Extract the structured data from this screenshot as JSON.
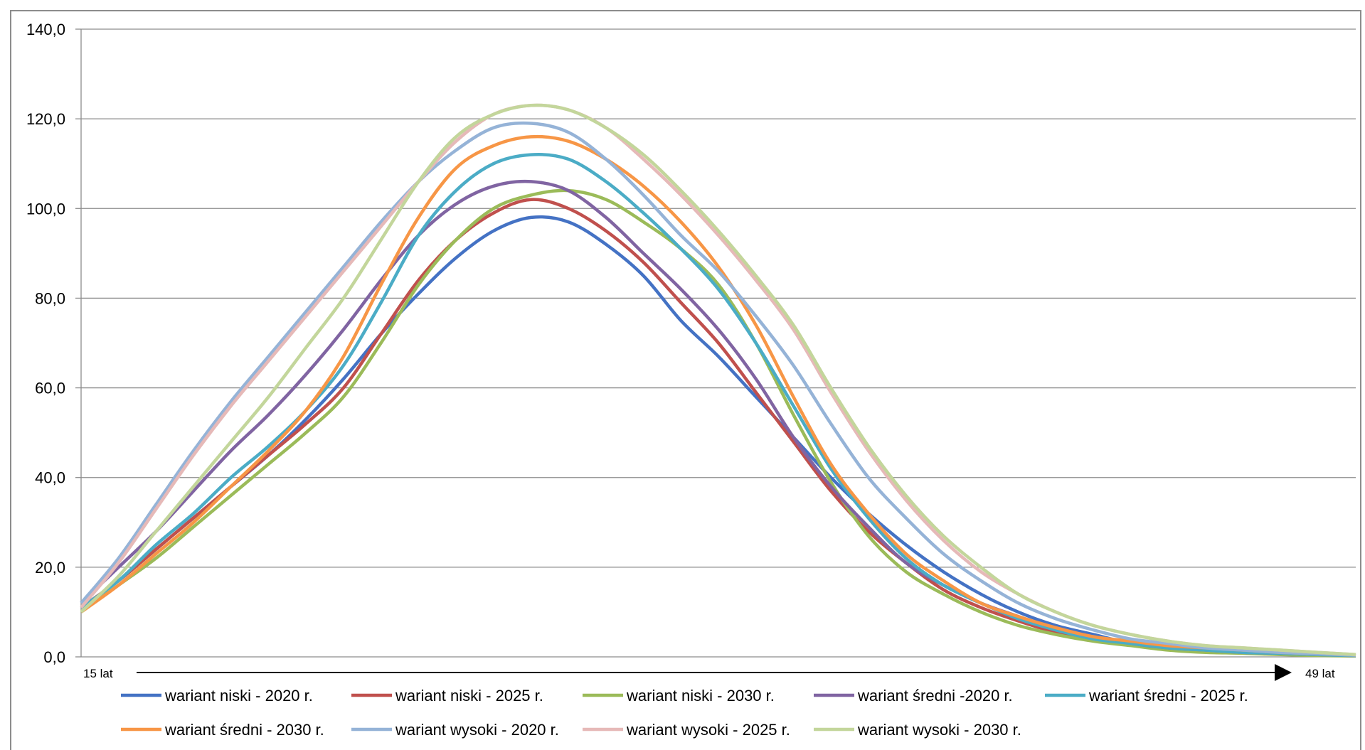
{
  "chart_data": {
    "type": "line",
    "title": "",
    "xlabel": "",
    "ylabel": "",
    "ylim": [
      0,
      140
    ],
    "yticks": [
      "0,0",
      "20,0",
      "40,0",
      "60,0",
      "80,0",
      "100,0",
      "120,0",
      "140,0"
    ],
    "x_start_label": "15 lat",
    "x_end_label": "49 lat",
    "grid": true,
    "legend_position": "bottom",
    "x": [
      15,
      16,
      17,
      18,
      19,
      20,
      21,
      22,
      23,
      24,
      25,
      26,
      27,
      28,
      29,
      30,
      31,
      32,
      33,
      34,
      35,
      36,
      37,
      38,
      39,
      40,
      41,
      42,
      43,
      44,
      45,
      46,
      47,
      48,
      49
    ],
    "series": [
      {
        "name": "wariant niski - 2020 r.",
        "color": "#4472C4",
        "values": [
          11,
          17,
          24,
          31,
          38,
          45,
          53,
          62,
          72,
          81,
          89,
          95,
          98,
          97,
          92,
          85,
          75,
          67,
          58,
          49,
          40,
          32,
          25,
          19,
          14,
          10,
          7,
          5,
          3,
          2,
          1.5,
          1,
          0.8,
          0.5,
          0.3
        ]
      },
      {
        "name": "wariant niski - 2025 r.",
        "color": "#C0504D",
        "values": [
          11,
          17,
          24,
          31,
          38,
          45,
          52,
          60,
          72,
          84,
          93,
          99,
          102,
          100,
          95,
          88,
          79,
          70,
          59,
          48,
          37,
          28,
          21,
          15,
          11,
          8,
          5.5,
          4,
          3,
          2,
          1.4,
          1,
          0.7,
          0.4,
          0.2
        ]
      },
      {
        "name": "wariant niski - 2030 r.",
        "color": "#9BBB59",
        "values": [
          10,
          16,
          22,
          29,
          36,
          43,
          50,
          58,
          70,
          83,
          93,
          100,
          103,
          104,
          102,
          97,
          91,
          83,
          70,
          54,
          39,
          27,
          19,
          14,
          10,
          7,
          5,
          3.5,
          2.5,
          1.5,
          1,
          0.8,
          0.5,
          0.3,
          0.2
        ]
      },
      {
        "name": "wariant średni -2020 r.",
        "color": "#8064A2",
        "values": [
          12,
          20,
          28,
          37,
          46,
          54,
          63,
          73,
          84,
          94,
          101,
          105,
          106,
          104,
          98,
          90,
          82,
          73,
          62,
          49,
          38,
          29,
          21,
          16,
          12,
          9,
          6,
          4.5,
          3,
          2,
          1.5,
          1,
          0.8,
          0.5,
          0.3
        ]
      },
      {
        "name": "wariant średni - 2025 r.",
        "color": "#4BACC6",
        "values": [
          11,
          17,
          25,
          32,
          40,
          47,
          55,
          65,
          79,
          94,
          104,
          110,
          112,
          111,
          106,
          99,
          91,
          82,
          70,
          56,
          42,
          31,
          22,
          16,
          12,
          8.5,
          6,
          4,
          3,
          2,
          1.5,
          1,
          0.8,
          0.5,
          0.3
        ]
      },
      {
        "name": "wariant średni - 2030 r.",
        "color": "#F79646",
        "values": [
          10,
          16,
          23,
          30,
          38,
          46,
          55,
          67,
          83,
          98,
          109,
          114,
          116,
          115,
          111,
          105,
          97,
          87,
          74,
          58,
          43,
          32,
          23,
          17,
          12,
          9,
          6.5,
          4.5,
          3.5,
          2.5,
          2,
          1.5,
          1,
          0.7,
          0.4
        ]
      },
      {
        "name": "wariant wysoki - 2020 r.",
        "color": "#95B3D7",
        "values": [
          12,
          22,
          34,
          46,
          57,
          67,
          77,
          87,
          97,
          106,
          113,
          118,
          119,
          117,
          111,
          103,
          94,
          86,
          76,
          65,
          52,
          40,
          31,
          23,
          17,
          12,
          8.5,
          6,
          4,
          3,
          2,
          1.5,
          1,
          0.7,
          0.4
        ]
      },
      {
        "name": "wariant wysoki - 2025 r.",
        "color": "#E6B9B8",
        "values": [
          11,
          21,
          33,
          45,
          56,
          66,
          76,
          86,
          96,
          106,
          115,
          121,
          123,
          122,
          118,
          111,
          103,
          94,
          84,
          73,
          59,
          46,
          35,
          26,
          19,
          14,
          10,
          7,
          5,
          3.5,
          2.5,
          2,
          1.5,
          1,
          0.5
        ]
      },
      {
        "name": "wariant wysoki - 2030 r.",
        "color": "#C3D69B",
        "values": [
          10,
          18,
          28,
          38,
          48,
          58,
          69,
          80,
          93,
          106,
          116,
          121,
          123,
          122,
          118,
          112,
          104,
          95,
          85,
          74,
          60,
          47,
          36,
          27,
          20,
          14,
          10,
          7,
          5,
          3.5,
          2.5,
          2,
          1.5,
          1,
          0.5
        ]
      }
    ]
  },
  "legend": {
    "row1": [
      "wariant niski - 2020 r.",
      "wariant niski - 2025 r.",
      "wariant niski - 2030 r.",
      "wariant średni -2020 r.",
      "wariant średni - 2025 r."
    ],
    "row2": [
      "wariant średni - 2030 r.",
      "wariant wysoki - 2020 r.",
      "wariant wysoki - 2025 r.",
      "wariant wysoki - 2030 r."
    ]
  }
}
